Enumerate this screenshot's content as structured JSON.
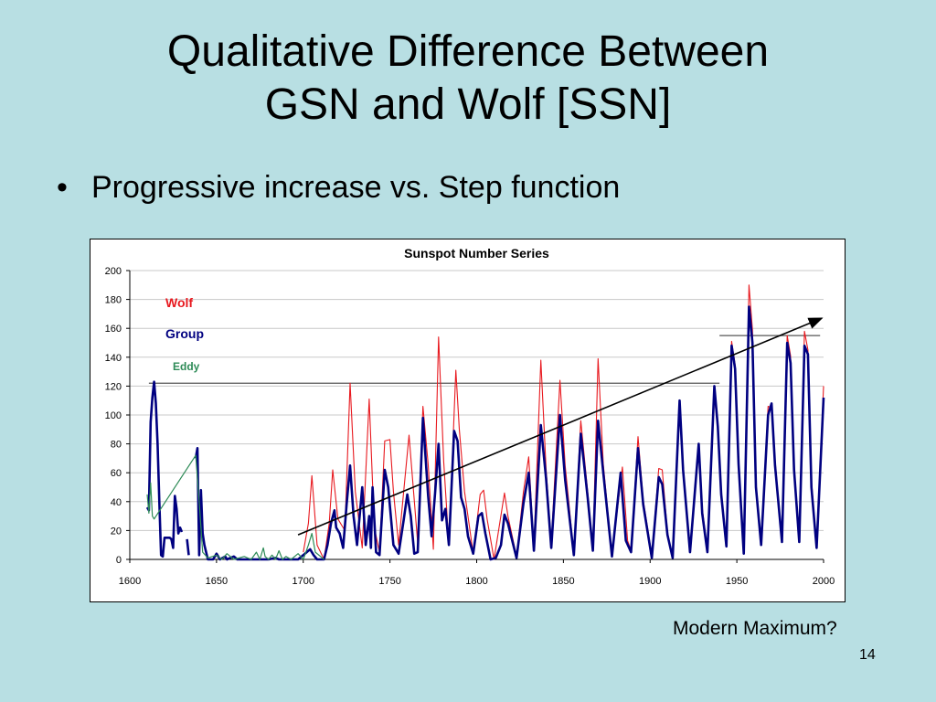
{
  "slide": {
    "title_line1": "Qualitative Difference Between",
    "title_line2": "GSN and Wolf [SSN]",
    "bullet": "Progressive increase vs. Step function",
    "bullet_symbol": "•",
    "caption": "Modern Maximum?",
    "page_number": "14"
  },
  "colors": {
    "background": "#b8dfe3",
    "wolf": "#e8191f",
    "group": "#000080",
    "eddy": "#2e8b57"
  },
  "chart_data": {
    "type": "line",
    "title": "Sunspot Number Series",
    "xlim": [
      1600,
      2000
    ],
    "ylim": [
      0,
      200
    ],
    "xticks": [
      1600,
      1650,
      1700,
      1750,
      1800,
      1850,
      1900,
      1950,
      2000
    ],
    "yticks": [
      0,
      20,
      40,
      60,
      80,
      100,
      120,
      140,
      160,
      180,
      200
    ],
    "grid": "horizontal",
    "legend_placement": "top-left",
    "series": [
      {
        "name": "Wolf",
        "color": "#e8191f",
        "points": [
          [
            1700,
            5
          ],
          [
            1703,
            25
          ],
          [
            1705,
            58
          ],
          [
            1708,
            10
          ],
          [
            1712,
            0
          ],
          [
            1715,
            25
          ],
          [
            1717,
            62
          ],
          [
            1720,
            28
          ],
          [
            1724,
            20
          ],
          [
            1727,
            122
          ],
          [
            1730,
            47
          ],
          [
            1734,
            8
          ],
          [
            1738,
            111
          ],
          [
            1741,
            22
          ],
          [
            1744,
            5
          ],
          [
            1747,
            82
          ],
          [
            1750,
            83
          ],
          [
            1752,
            47
          ],
          [
            1755,
            10
          ],
          [
            1761,
            86
          ],
          [
            1766,
            11
          ],
          [
            1769,
            106
          ],
          [
            1772,
            66
          ],
          [
            1775,
            7
          ],
          [
            1778,
            154
          ],
          [
            1781,
            68
          ],
          [
            1784,
            10
          ],
          [
            1788,
            131
          ],
          [
            1790,
            90
          ],
          [
            1793,
            47
          ],
          [
            1798,
            4
          ],
          [
            1802,
            45
          ],
          [
            1804,
            48
          ],
          [
            1806,
            28
          ],
          [
            1810,
            0
          ],
          [
            1816,
            46
          ],
          [
            1818,
            30
          ],
          [
            1823,
            2
          ],
          [
            1827,
            47
          ],
          [
            1830,
            71
          ],
          [
            1833,
            8
          ],
          [
            1837,
            138
          ],
          [
            1840,
            63
          ],
          [
            1843,
            11
          ],
          [
            1848,
            124
          ],
          [
            1851,
            65
          ],
          [
            1856,
            4
          ],
          [
            1860,
            96
          ],
          [
            1864,
            47
          ],
          [
            1867,
            7
          ],
          [
            1870,
            139
          ],
          [
            1873,
            66
          ],
          [
            1878,
            3
          ],
          [
            1884,
            64
          ],
          [
            1887,
            13
          ],
          [
            1889,
            6
          ],
          [
            1893,
            85
          ],
          [
            1896,
            41
          ],
          [
            1901,
            3
          ],
          [
            1905,
            63
          ],
          [
            1907,
            62
          ],
          [
            1910,
            19
          ],
          [
            1913,
            1
          ],
          [
            1917,
            104
          ],
          [
            1919,
            64
          ],
          [
            1923,
            6
          ],
          [
            1928,
            78
          ],
          [
            1930,
            36
          ],
          [
            1933,
            6
          ],
          [
            1937,
            114
          ],
          [
            1939,
            89
          ],
          [
            1941,
            47
          ],
          [
            1944,
            10
          ],
          [
            1947,
            151
          ],
          [
            1949,
            135
          ],
          [
            1951,
            69
          ],
          [
            1954,
            4
          ],
          [
            1957,
            190
          ],
          [
            1959,
            159
          ],
          [
            1961,
            54
          ],
          [
            1964,
            10
          ],
          [
            1968,
            106
          ],
          [
            1970,
            105
          ],
          [
            1972,
            69
          ],
          [
            1976,
            13
          ],
          [
            1979,
            155
          ],
          [
            1981,
            141
          ],
          [
            1983,
            66
          ],
          [
            1986,
            13
          ],
          [
            1989,
            158
          ],
          [
            1991,
            145
          ],
          [
            1993,
            55
          ],
          [
            1996,
            9
          ],
          [
            2000,
            120
          ]
        ]
      },
      {
        "name": "Group",
        "color": "#000080",
        "segments": [
          [
            [
              1610,
              36
            ],
            [
              1611,
              34
            ],
            [
              1612,
              95
            ],
            [
              1613,
              112
            ],
            [
              1614,
              123
            ],
            [
              1615,
              108
            ],
            [
              1616,
              80
            ],
            [
              1617,
              40
            ],
            [
              1618,
              3
            ],
            [
              1619,
              2
            ],
            [
              1620,
              15
            ],
            [
              1623,
              15
            ],
            [
              1624,
              14
            ],
            [
              1625,
              8
            ],
            [
              1626,
              44
            ],
            [
              1627,
              35
            ],
            [
              1628,
              18
            ],
            [
              1629,
              22
            ],
            [
              1630,
              19
            ]
          ],
          [
            [
              1633,
              14
            ],
            [
              1634,
              3
            ]
          ],
          [
            [
              1638,
              70
            ],
            [
              1639,
              77
            ],
            [
              1640,
              3
            ],
            [
              1641,
              48
            ],
            [
              1642,
              18
            ],
            [
              1643,
              10
            ],
            [
              1645,
              0
            ],
            [
              1648,
              0
            ],
            [
              1650,
              4
            ],
            [
              1652,
              0
            ],
            [
              1655,
              2
            ],
            [
              1656,
              0
            ],
            [
              1660,
              2
            ],
            [
              1662,
              0
            ],
            [
              1680,
              0
            ],
            [
              1684,
              1
            ],
            [
              1686,
              0
            ],
            [
              1697,
              0
            ],
            [
              1700,
              3
            ],
            [
              1702,
              5
            ],
            [
              1704,
              7
            ],
            [
              1706,
              3
            ],
            [
              1708,
              0
            ],
            [
              1712,
              0
            ],
            [
              1714,
              10
            ],
            [
              1716,
              25
            ],
            [
              1718,
              34
            ],
            [
              1719,
              22
            ],
            [
              1721,
              18
            ],
            [
              1723,
              8
            ],
            [
              1725,
              38
            ],
            [
              1727,
              65
            ],
            [
              1729,
              30
            ],
            [
              1731,
              10
            ],
            [
              1734,
              50
            ],
            [
              1736,
              10
            ],
            [
              1738,
              30
            ],
            [
              1739,
              8
            ],
            [
              1740,
              50
            ],
            [
              1742,
              5
            ],
            [
              1744,
              3
            ],
            [
              1747,
              62
            ],
            [
              1749,
              50
            ],
            [
              1752,
              10
            ],
            [
              1755,
              4
            ],
            [
              1758,
              28
            ],
            [
              1760,
              45
            ],
            [
              1762,
              30
            ],
            [
              1764,
              4
            ],
            [
              1766,
              5
            ],
            [
              1769,
              98
            ],
            [
              1772,
              44
            ],
            [
              1774,
              16
            ],
            [
              1776,
              46
            ],
            [
              1778,
              80
            ],
            [
              1780,
              27
            ],
            [
              1782,
              35
            ],
            [
              1784,
              10
            ],
            [
              1787,
              89
            ],
            [
              1789,
              82
            ],
            [
              1791,
              43
            ],
            [
              1793,
              35
            ],
            [
              1795,
              16
            ],
            [
              1798,
              4
            ],
            [
              1801,
              30
            ],
            [
              1803,
              32
            ],
            [
              1805,
              18
            ],
            [
              1808,
              0
            ],
            [
              1811,
              1
            ],
            [
              1814,
              10
            ],
            [
              1816,
              31
            ],
            [
              1818,
              25
            ],
            [
              1823,
              1
            ],
            [
              1827,
              39
            ],
            [
              1830,
              60
            ],
            [
              1833,
              6
            ],
            [
              1837,
              93
            ],
            [
              1840,
              56
            ],
            [
              1843,
              8
            ],
            [
              1848,
              100
            ],
            [
              1851,
              55
            ],
            [
              1856,
              3
            ],
            [
              1860,
              87
            ],
            [
              1864,
              43
            ],
            [
              1867,
              6
            ],
            [
              1870,
              96
            ],
            [
              1873,
              60
            ],
            [
              1878,
              2
            ],
            [
              1883,
              60
            ],
            [
              1886,
              13
            ],
            [
              1889,
              5
            ],
            [
              1893,
              77
            ],
            [
              1896,
              38
            ],
            [
              1901,
              1
            ],
            [
              1905,
              57
            ],
            [
              1907,
              52
            ],
            [
              1910,
              17
            ],
            [
              1913,
              1
            ],
            [
              1917,
              110
            ],
            [
              1919,
              62
            ],
            [
              1923,
              5
            ],
            [
              1928,
              80
            ],
            [
              1930,
              32
            ],
            [
              1933,
              5
            ],
            [
              1937,
              120
            ],
            [
              1939,
              92
            ],
            [
              1941,
              45
            ],
            [
              1944,
              9
            ],
            [
              1947,
              148
            ],
            [
              1949,
              132
            ],
            [
              1951,
              66
            ],
            [
              1954,
              4
            ],
            [
              1957,
              175
            ],
            [
              1959,
              150
            ],
            [
              1961,
              50
            ],
            [
              1964,
              10
            ],
            [
              1968,
              100
            ],
            [
              1970,
              108
            ],
            [
              1972,
              65
            ],
            [
              1976,
              12
            ],
            [
              1979,
              150
            ],
            [
              1981,
              136
            ],
            [
              1983,
              62
            ],
            [
              1986,
              12
            ],
            [
              1989,
              148
            ],
            [
              1991,
              142
            ],
            [
              1993,
              50
            ],
            [
              1996,
              8
            ],
            [
              2000,
              112
            ]
          ]
        ]
      },
      {
        "name": "Eddy",
        "color": "#2e8b57",
        "points": [
          [
            1610,
            45
          ],
          [
            1611,
            32
          ],
          [
            1612,
            53
          ],
          [
            1613,
            30
          ],
          [
            1614,
            28
          ],
          [
            1638,
            72
          ],
          [
            1640,
            40
          ],
          [
            1642,
            5
          ],
          [
            1645,
            1
          ],
          [
            1650,
            3
          ],
          [
            1653,
            0
          ],
          [
            1656,
            4
          ],
          [
            1660,
            0
          ],
          [
            1666,
            2
          ],
          [
            1670,
            0
          ],
          [
            1673,
            5
          ],
          [
            1675,
            0
          ],
          [
            1677,
            8
          ],
          [
            1678,
            2
          ],
          [
            1680,
            0
          ],
          [
            1682,
            3
          ],
          [
            1684,
            0
          ],
          [
            1686,
            6
          ],
          [
            1688,
            0
          ],
          [
            1690,
            2
          ],
          [
            1693,
            0
          ],
          [
            1697,
            4
          ],
          [
            1700,
            0
          ],
          [
            1703,
            10
          ],
          [
            1705,
            18
          ],
          [
            1707,
            5
          ],
          [
            1710,
            2
          ],
          [
            1712,
            0
          ]
        ]
      }
    ],
    "annotations": [
      {
        "type": "hline",
        "y": 122,
        "x1": 1611,
        "x2": 1940
      },
      {
        "type": "hline",
        "y": 155,
        "x1": 1940,
        "x2": 1998
      },
      {
        "type": "arrow",
        "from": [
          1697,
          17
        ],
        "to": [
          1999,
          167
        ]
      }
    ]
  }
}
